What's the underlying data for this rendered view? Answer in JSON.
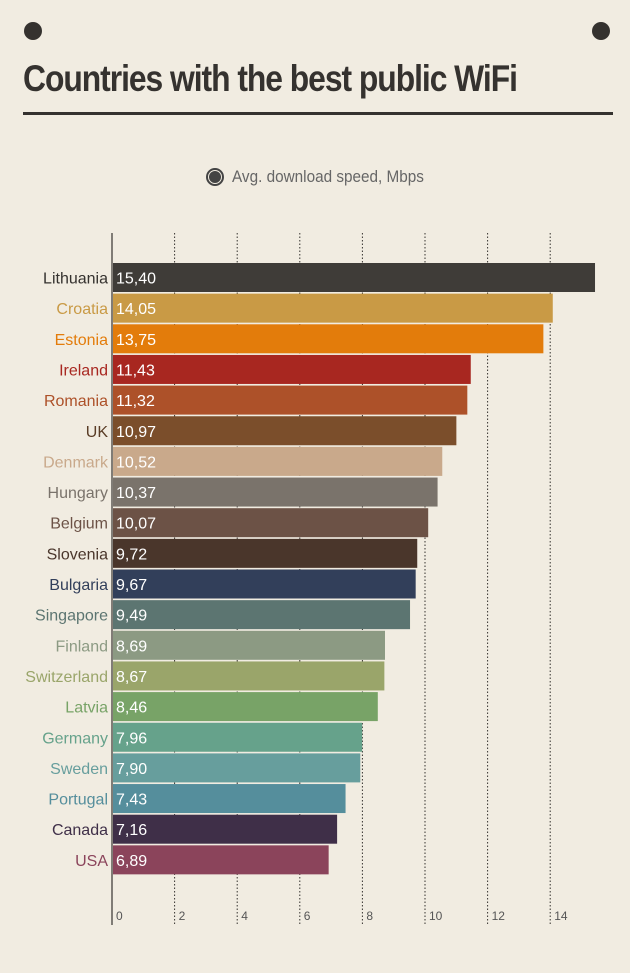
{
  "header": {
    "title": "Countries with the best public WiFi"
  },
  "legend": {
    "label": "Avg. download speed, Mbps",
    "marker_color": "#444444"
  },
  "chart_data": {
    "type": "bar",
    "orientation": "horizontal",
    "title": "Countries with the best public WiFi",
    "xlim": [
      0,
      15.5
    ],
    "x_ticks": [
      "0",
      "2",
      "4",
      "6",
      "8",
      "10",
      "12",
      "14"
    ],
    "grid": true,
    "series": [
      {
        "name": "Avg. download speed, Mbps",
        "values": [
          15.4,
          14.05,
          13.75,
          11.43,
          11.32,
          10.97,
          10.52,
          10.37,
          10.07,
          9.72,
          9.67,
          9.49,
          8.69,
          8.67,
          8.46,
          7.96,
          7.9,
          7.43,
          7.16,
          6.89
        ]
      }
    ],
    "categories": [
      "Lithuania",
      "Croatia",
      "Estonia",
      "Ireland",
      "Romania",
      "UK",
      "Denmark",
      "Hungary",
      "Belgium",
      "Slovenia",
      "Bulgaria",
      "Singapore",
      "Finland",
      "Switzerland",
      "Latvia",
      "Germany",
      "Sweden",
      "Portugal",
      "Canada",
      "USA"
    ],
    "value_labels": [
      "15,40",
      "14,05",
      "13,75",
      "11,43",
      "11,32",
      "10,97",
      "10,52",
      "10,37",
      "10,07",
      "9,72",
      "9,67",
      "9,49",
      "8,69",
      "8,67",
      "8,46",
      "7,96",
      "7,90",
      "7,43",
      "7,16",
      "6,89"
    ],
    "colors": [
      "#3f3c38",
      "#c99a45",
      "#e37c0b",
      "#a82720",
      "#ad5129",
      "#7b4e2b",
      "#c9a98b",
      "#7a736b",
      "#6c5246",
      "#4a362b",
      "#323f5a",
      "#5c7571",
      "#8c9a83",
      "#9aa56a",
      "#78a367",
      "#66a28b",
      "#679e9d",
      "#558e9c",
      "#3f2f48",
      "#8b445b"
    ],
    "label_colors": [
      "#35322f",
      "#c99a45",
      "#e37c0b",
      "#a82720",
      "#ad5129",
      "#5a3d26",
      "#c9a98b",
      "#7a736b",
      "#6c5246",
      "#4a362b",
      "#323f5a",
      "#5c7571",
      "#8c9a83",
      "#9aa56a",
      "#78a367",
      "#66a28b",
      "#679e9d",
      "#558e9c",
      "#3f2f48",
      "#8b445b"
    ]
  }
}
